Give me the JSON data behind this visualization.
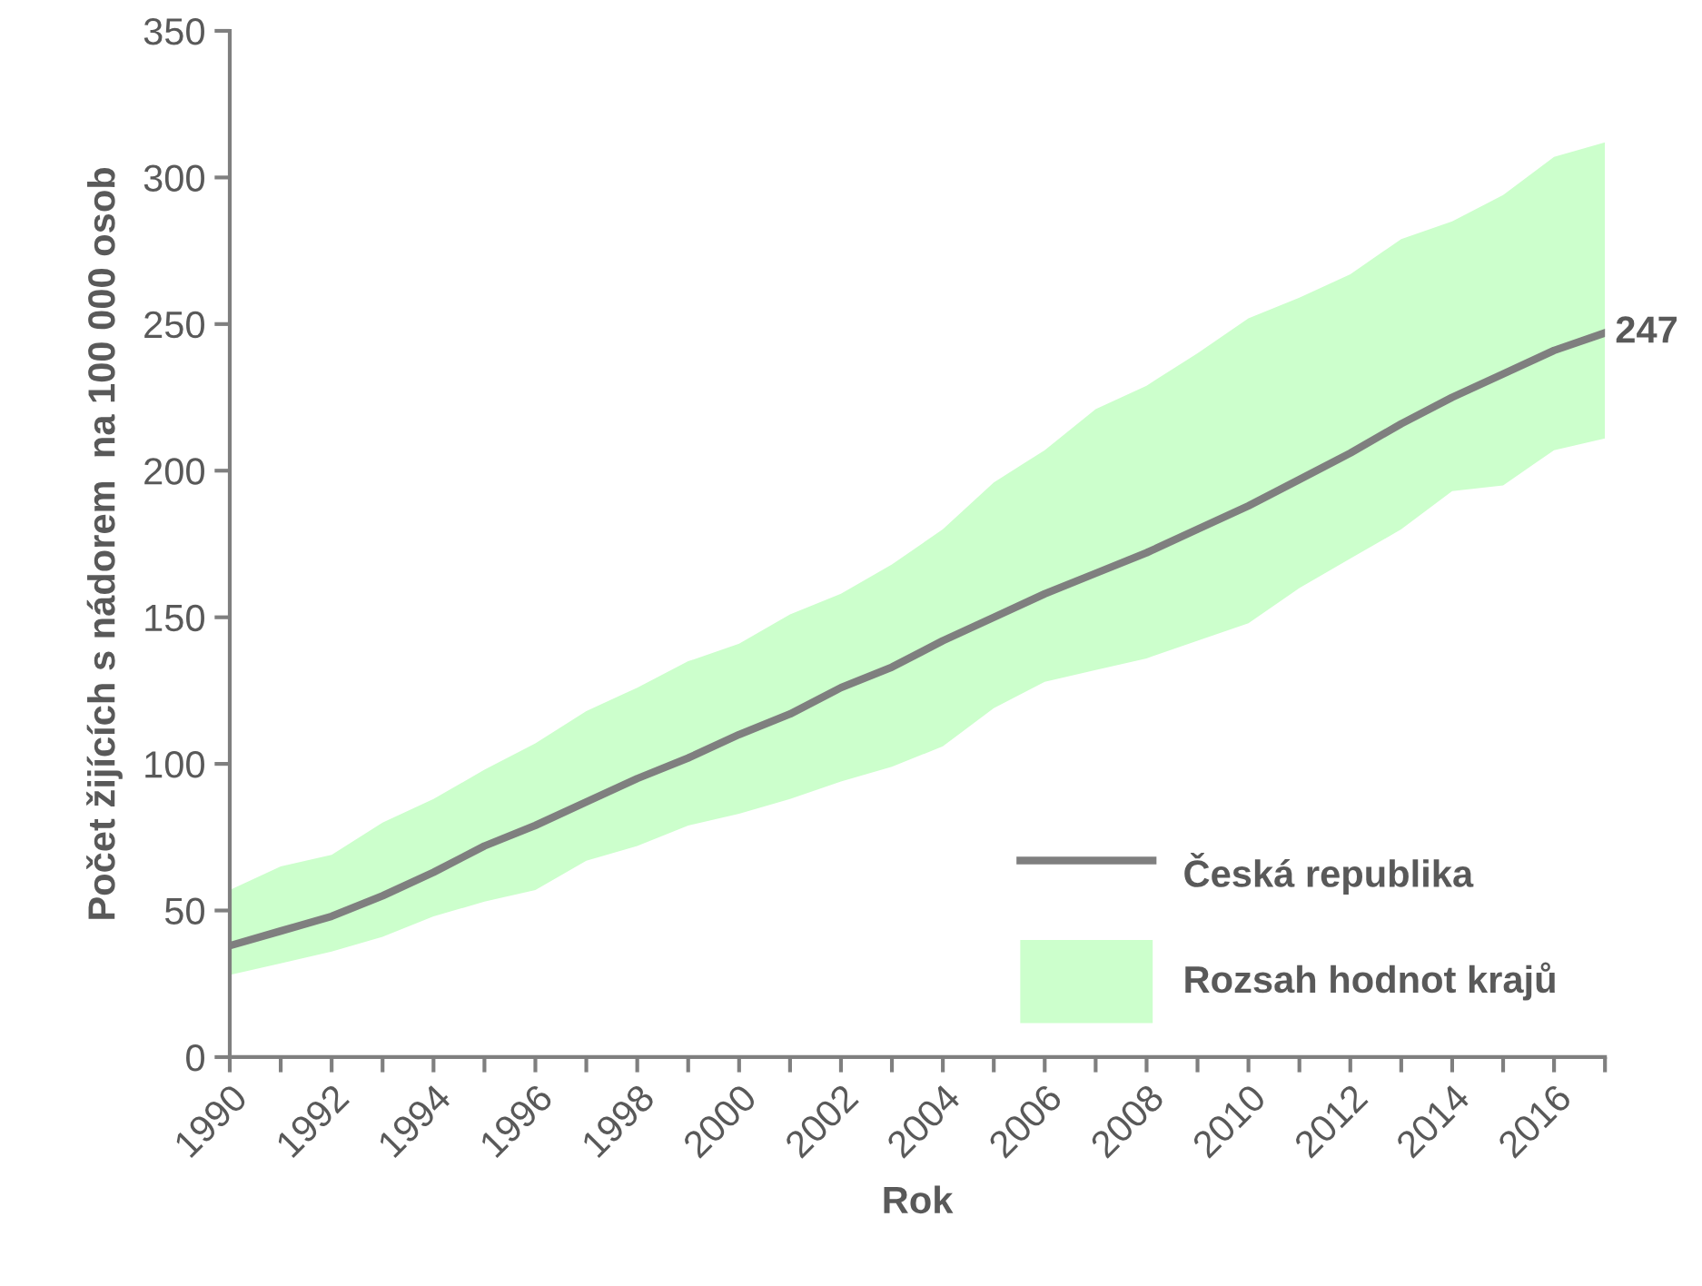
{
  "chart_data": {
    "type": "line",
    "xlabel": "Rok",
    "ylabel": "Počet žijících s nádorem  na 100 000 osob",
    "x": [
      1990,
      1991,
      1992,
      1993,
      1994,
      1995,
      1996,
      1997,
      1998,
      1999,
      2000,
      2001,
      2002,
      2003,
      2004,
      2005,
      2006,
      2007,
      2008,
      2009,
      2010,
      2011,
      2012,
      2013,
      2014,
      2015,
      2016,
      2017
    ],
    "series": [
      {
        "name": "Česká republika",
        "color": "#7f7f7f",
        "values": [
          38,
          43,
          48,
          55,
          63,
          72,
          79,
          87,
          95,
          102,
          110,
          117,
          126,
          133,
          142,
          150,
          158,
          165,
          172,
          180,
          188,
          197,
          206,
          216,
          225,
          233,
          241,
          247
        ],
        "lower": [
          28,
          32,
          36,
          41,
          48,
          53,
          57,
          67,
          72,
          79,
          83,
          88,
          94,
          99,
          106,
          119,
          128,
          132,
          136,
          142,
          148,
          160,
          170,
          180,
          193,
          195,
          207,
          211
        ],
        "upper": [
          57,
          65,
          69,
          80,
          88,
          98,
          107,
          118,
          126,
          135,
          141,
          151,
          158,
          168,
          180,
          196,
          207,
          221,
          229,
          240,
          252,
          259,
          267,
          279,
          285,
          294,
          307,
          312
        ]
      }
    ],
    "annotations": [
      {
        "text": "247",
        "x": 2017,
        "y": 247
      },
      "Rozsah hodnot krajů"
    ],
    "xlim": [
      1990,
      2017
    ],
    "xticks": [
      1990,
      {
        "value": 1991,
        "label": null
      },
      1992,
      {
        "value": 1993,
        "label": null
      },
      1994,
      {
        "value": 1995,
        "label": null
      },
      1996,
      {
        "value": 1997,
        "label": null
      },
      1998,
      {
        "value": 1999,
        "label": null
      },
      2000,
      {
        "value": 2001,
        "label": null
      },
      2002,
      {
        "value": 2003,
        "label": null
      },
      2004,
      {
        "value": 2005,
        "label": null
      },
      2006,
      {
        "value": 2007,
        "label": null
      },
      2008,
      {
        "value": 2009,
        "label": null
      },
      2010,
      {
        "value": 2011,
        "label": null
      },
      2012,
      {
        "value": 2013,
        "label": null
      },
      2014,
      {
        "value": 2015,
        "label": null
      },
      2016,
      {
        "value": 2017,
        "label": null
      }
    ],
    "ylim": [
      0,
      350
    ],
    "yticks": [
      0,
      50,
      100,
      150,
      200,
      250,
      300,
      350
    ],
    "grid": false,
    "legend": "bottom right",
    "line_style": "solid",
    "marker": "none"
  }
}
